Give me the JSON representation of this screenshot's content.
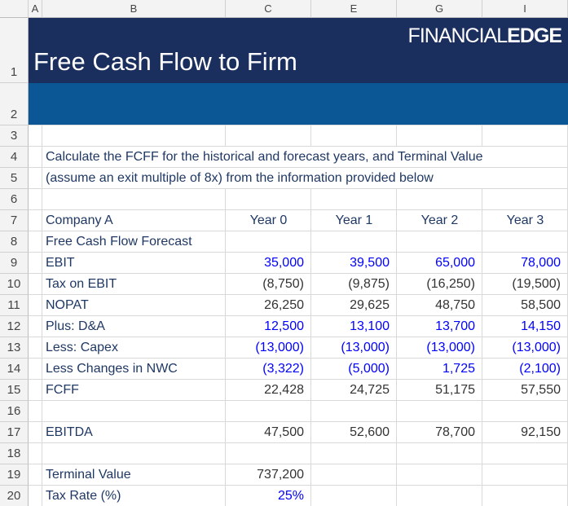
{
  "column_headers": [
    "A",
    "B",
    "C",
    "E",
    "G",
    "I"
  ],
  "row_numbers": [
    1,
    2,
    3,
    4,
    5,
    6,
    7,
    8,
    9,
    10,
    11,
    12,
    13,
    14,
    15,
    16,
    17,
    18,
    19,
    20
  ],
  "header": {
    "title": "Free Cash Flow to Firm",
    "logo_light": "FINANCIAL",
    "logo_bold": "EDGE"
  },
  "instructions": [
    "Calculate the FCFF for the historical and forecast years, and Terminal Value",
    "(assume an exit multiple of 8x) from the information provided below"
  ],
  "table": {
    "company": "Company A",
    "years": [
      "Year 0",
      "Year 1",
      "Year 2",
      "Year 3"
    ],
    "section": "Free Cash Flow Forecast",
    "rows": [
      {
        "label": "EBIT",
        "values": [
          "35,000",
          "39,500",
          "65,000",
          "78,000"
        ],
        "color": "#0000ff"
      },
      {
        "label": "Tax on EBIT",
        "values": [
          "(8,750)",
          "(9,875)",
          "(16,250)",
          "(19,500)"
        ],
        "color": "#333333"
      },
      {
        "label": "NOPAT",
        "values": [
          "26,250",
          "29,625",
          "48,750",
          "58,500"
        ],
        "color": "#333333"
      },
      {
        "label": "Plus: D&A",
        "values": [
          "12,500",
          "13,100",
          "13,700",
          "14,150"
        ],
        "color": "#0000ff"
      },
      {
        "label": "Less: Capex",
        "values": [
          "(13,000)",
          "(13,000)",
          "(13,000)",
          "(13,000)"
        ],
        "color": "#0000ff"
      },
      {
        "label": "Less Changes in NWC",
        "values": [
          "(3,322)",
          "(5,000)",
          "1,725",
          "(2,100)"
        ],
        "color": "#0000ff"
      },
      {
        "label": "FCFF",
        "values": [
          "22,428",
          "24,725",
          "51,175",
          "57,550"
        ],
        "color": "#333333"
      }
    ],
    "ebitda": {
      "label": "EBITDA",
      "values": [
        "47,500",
        "52,600",
        "78,700",
        "92,150"
      ],
      "color": "#333333"
    },
    "terminal_value": {
      "label": "Terminal Value",
      "value": "737,200",
      "color": "#333333"
    },
    "tax_rate": {
      "label": "Tax Rate (%)",
      "value": "25%",
      "color": "#0000ff"
    }
  }
}
